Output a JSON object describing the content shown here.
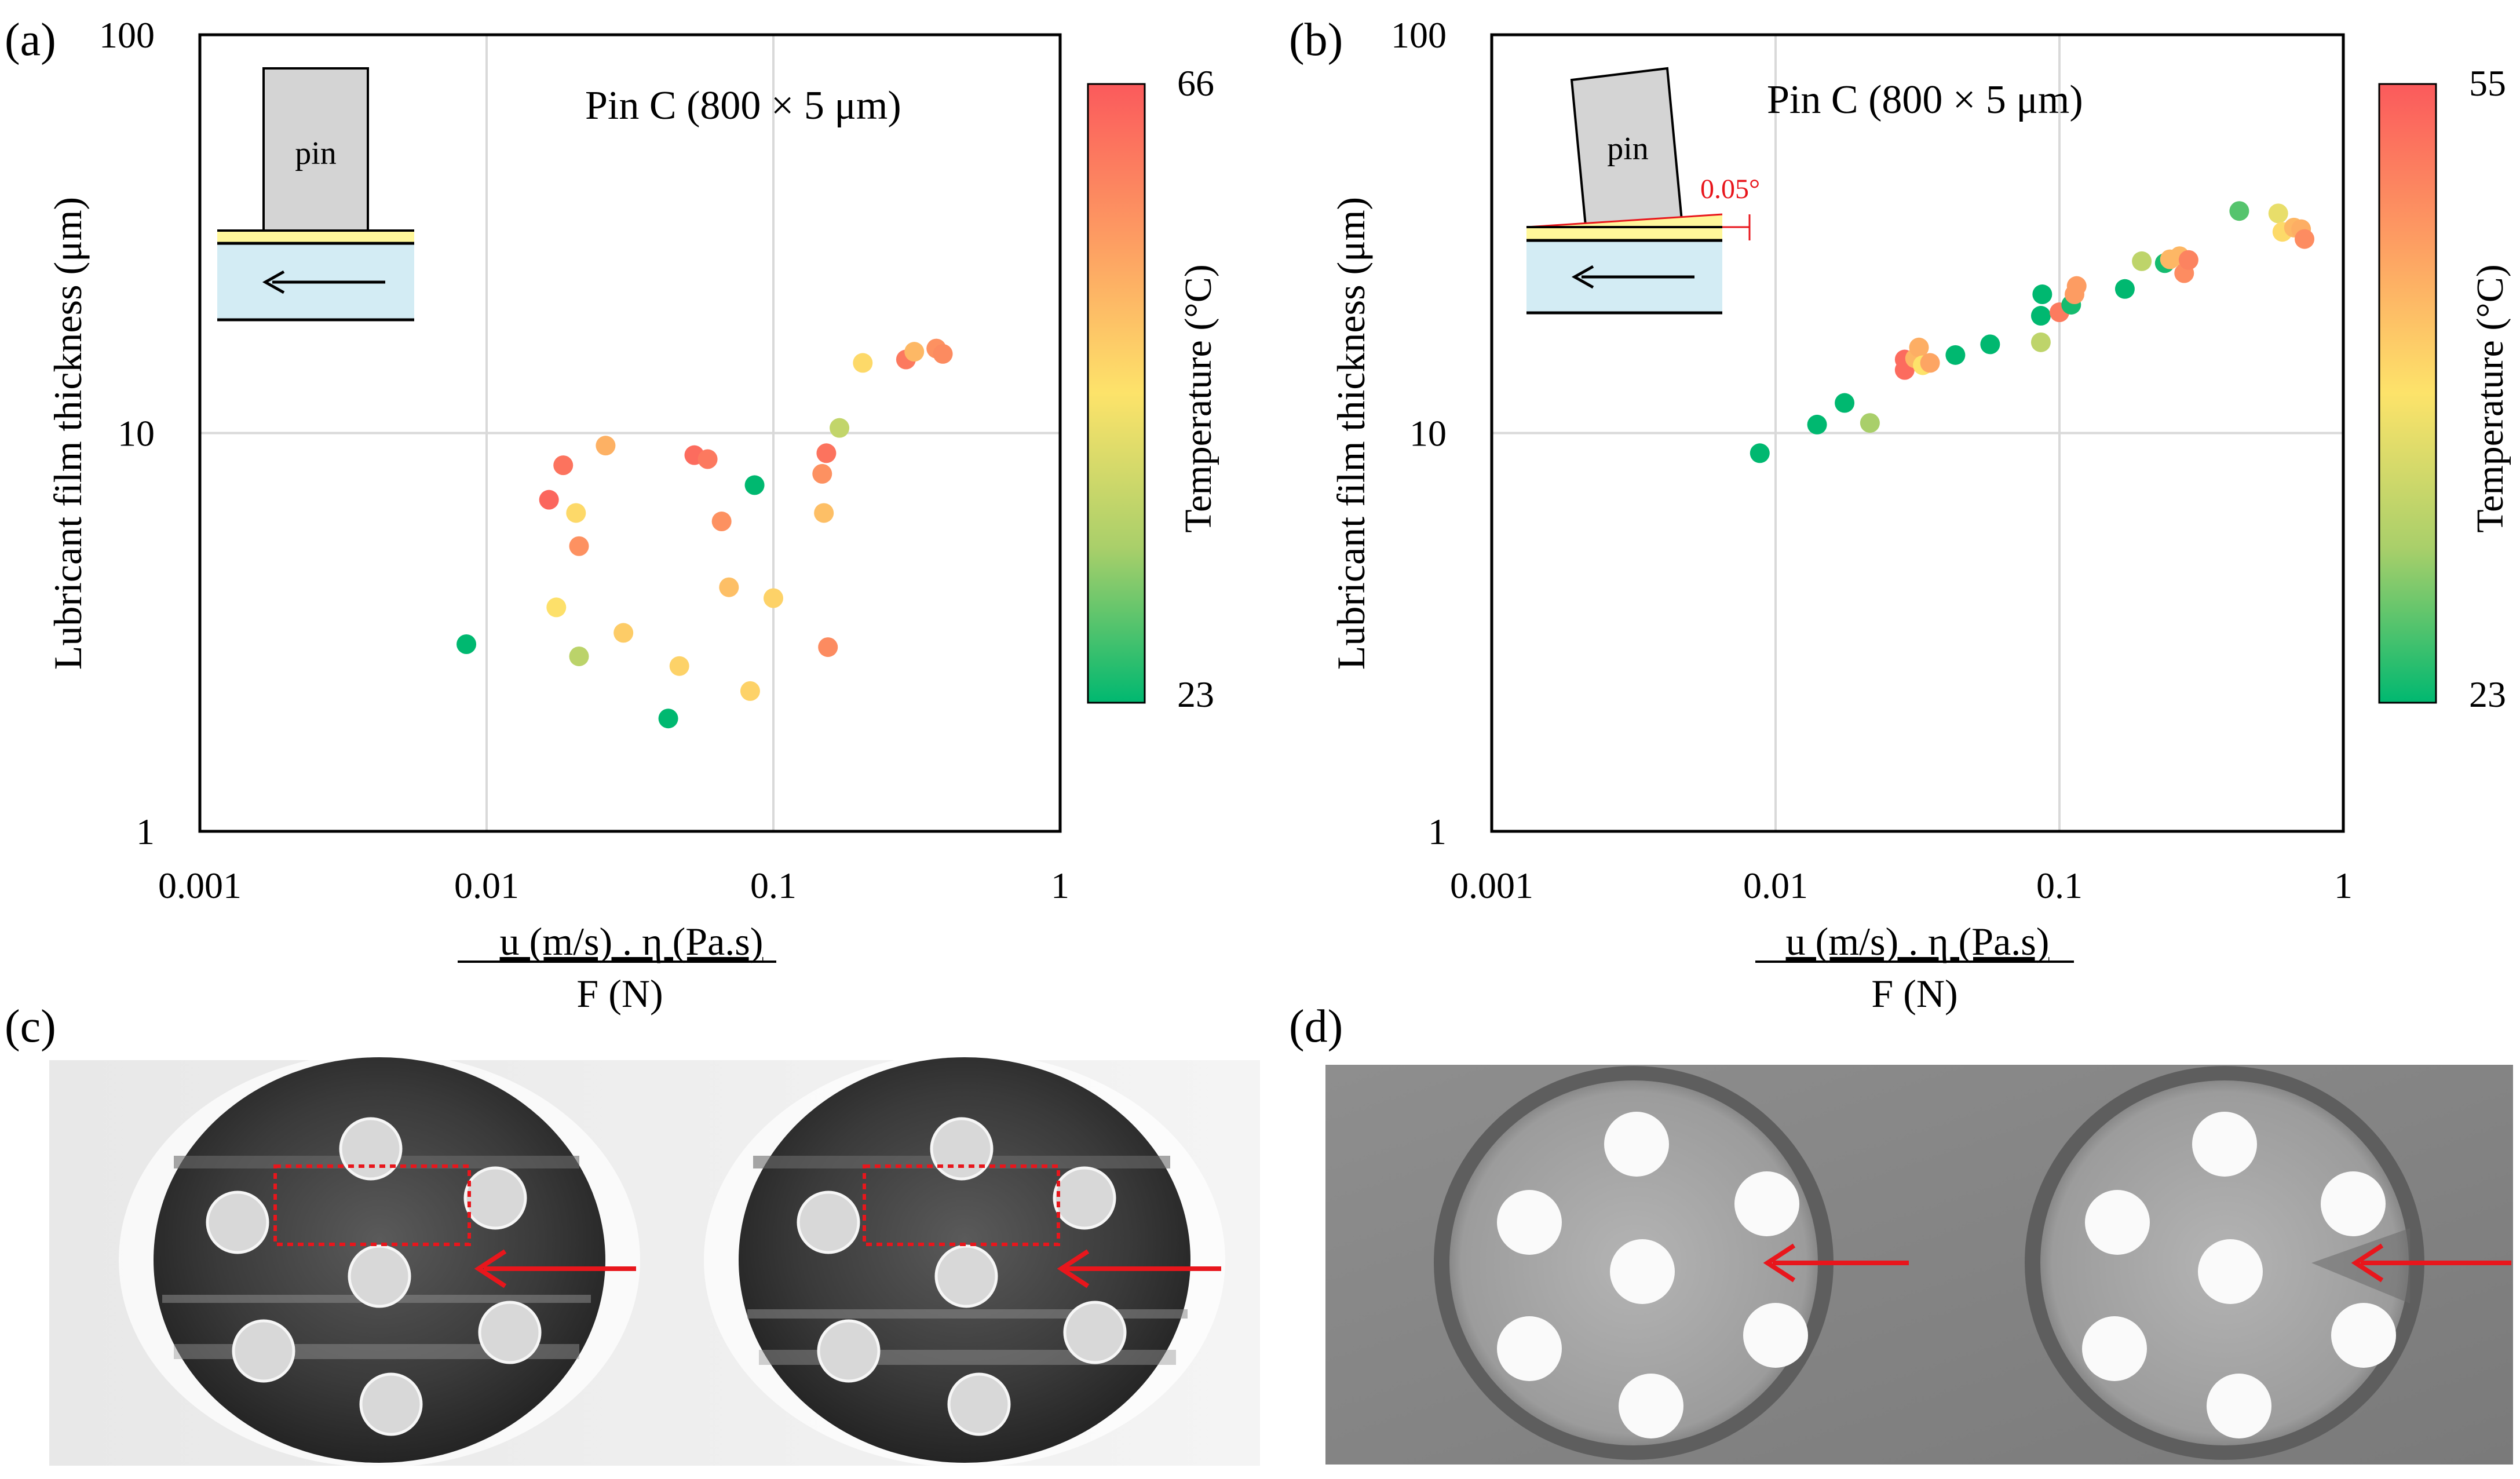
{
  "panels": {
    "a": {
      "label": "(a)"
    },
    "b": {
      "label": "(b)"
    },
    "c": {
      "label": "(c)"
    },
    "d": {
      "label": "(d)"
    }
  },
  "inset": {
    "pin_label": "pin",
    "tilt_label": "0.05°"
  },
  "colorbar": {
    "title": "Temperature (°C)",
    "a": {
      "min": 23,
      "max": 66
    },
    "b": {
      "min": 23,
      "max": 55
    },
    "colors": [
      "#00b870",
      "#a9cf6a",
      "#fde36a",
      "#fd9c62",
      "#fb5a5c"
    ]
  },
  "colors": {
    "annotation_red": "#e8161c"
  },
  "chart_data": [
    {
      "id": "a",
      "type": "scatter",
      "title": "Pin C (800 × 5 μm)",
      "xlabel_numerator": "u (m/s) . η (Pa.s)",
      "xlabel_denominator": "F (N)",
      "ylabel": "Lubricant film thickness (μm)",
      "xscale": "log",
      "yscale": "log",
      "xlim": [
        0.001,
        1
      ],
      "ylim": [
        1,
        100
      ],
      "xticks": [
        "0.001",
        "0.01",
        "0.1",
        "1"
      ],
      "yticks": [
        "1",
        "10",
        "100"
      ],
      "grid": true,
      "colorbar_range": [
        23,
        66
      ],
      "points": [
        {
          "x": 0.0085,
          "y": 2.95,
          "t": 23
        },
        {
          "x": 0.0165,
          "y": 6.8,
          "t": 64
        },
        {
          "x": 0.0175,
          "y": 3.65,
          "t": 45
        },
        {
          "x": 0.0185,
          "y": 8.3,
          "t": 62
        },
        {
          "x": 0.0205,
          "y": 6.3,
          "t": 46
        },
        {
          "x": 0.021,
          "y": 2.75,
          "t": 36
        },
        {
          "x": 0.021,
          "y": 5.2,
          "t": 57
        },
        {
          "x": 0.026,
          "y": 9.3,
          "t": 52
        },
        {
          "x": 0.03,
          "y": 3.15,
          "t": 48
        },
        {
          "x": 0.043,
          "y": 1.92,
          "t": 23
        },
        {
          "x": 0.047,
          "y": 2.6,
          "t": 47
        },
        {
          "x": 0.053,
          "y": 8.8,
          "t": 63
        },
        {
          "x": 0.059,
          "y": 8.6,
          "t": 61
        },
        {
          "x": 0.066,
          "y": 6.0,
          "t": 57
        },
        {
          "x": 0.07,
          "y": 4.1,
          "t": 50
        },
        {
          "x": 0.083,
          "y": 2.25,
          "t": 47
        },
        {
          "x": 0.086,
          "y": 7.4,
          "t": 23
        },
        {
          "x": 0.1,
          "y": 3.85,
          "t": 47
        },
        {
          "x": 0.148,
          "y": 7.9,
          "t": 57
        },
        {
          "x": 0.15,
          "y": 6.3,
          "t": 50
        },
        {
          "x": 0.153,
          "y": 8.9,
          "t": 62
        },
        {
          "x": 0.155,
          "y": 2.9,
          "t": 58
        },
        {
          "x": 0.17,
          "y": 10.3,
          "t": 37
        },
        {
          "x": 0.205,
          "y": 15.0,
          "t": 46
        },
        {
          "x": 0.29,
          "y": 15.3,
          "t": 61
        },
        {
          "x": 0.31,
          "y": 16.0,
          "t": 51
        },
        {
          "x": 0.37,
          "y": 16.3,
          "t": 57
        },
        {
          "x": 0.39,
          "y": 15.8,
          "t": 58
        }
      ]
    },
    {
      "id": "b",
      "type": "scatter",
      "title": "Pin C (800 × 5 μm)",
      "xlabel_numerator": "u (m/s) . η (Pa.s)",
      "xlabel_denominator": "F (N)",
      "ylabel": "Lubricant film thickness (μm)",
      "xscale": "log",
      "yscale": "log",
      "xlim": [
        0.001,
        1
      ],
      "ylim": [
        1,
        100
      ],
      "xticks": [
        "0.001",
        "0.01",
        "0.1",
        "1"
      ],
      "yticks": [
        "1",
        "10",
        "100"
      ],
      "grid": true,
      "colorbar_range": [
        23,
        55
      ],
      "points": [
        {
          "x": 0.0088,
          "y": 8.9,
          "t": 23
        },
        {
          "x": 0.014,
          "y": 10.5,
          "t": 23
        },
        {
          "x": 0.0175,
          "y": 11.9,
          "t": 23
        },
        {
          "x": 0.0215,
          "y": 10.6,
          "t": 31
        },
        {
          "x": 0.0285,
          "y": 14.4,
          "t": 53
        },
        {
          "x": 0.0285,
          "y": 15.3,
          "t": 53
        },
        {
          "x": 0.031,
          "y": 15.4,
          "t": 44
        },
        {
          "x": 0.032,
          "y": 16.4,
          "t": 45
        },
        {
          "x": 0.033,
          "y": 14.8,
          "t": 39
        },
        {
          "x": 0.035,
          "y": 15.0,
          "t": 46
        },
        {
          "x": 0.043,
          "y": 15.7,
          "t": 23
        },
        {
          "x": 0.057,
          "y": 16.7,
          "t": 23
        },
        {
          "x": 0.086,
          "y": 16.9,
          "t": 33
        },
        {
          "x": 0.086,
          "y": 19.7,
          "t": 23
        },
        {
          "x": 0.087,
          "y": 22.3,
          "t": 23
        },
        {
          "x": 0.1,
          "y": 20.1,
          "t": 51
        },
        {
          "x": 0.11,
          "y": 21.0,
          "t": 24
        },
        {
          "x": 0.113,
          "y": 22.3,
          "t": 47
        },
        {
          "x": 0.115,
          "y": 23.4,
          "t": 47
        },
        {
          "x": 0.17,
          "y": 23.0,
          "t": 23
        },
        {
          "x": 0.195,
          "y": 27.0,
          "t": 33
        },
        {
          "x": 0.235,
          "y": 26.7,
          "t": 24
        },
        {
          "x": 0.245,
          "y": 27.3,
          "t": 44
        },
        {
          "x": 0.265,
          "y": 27.8,
          "t": 44
        },
        {
          "x": 0.275,
          "y": 25.2,
          "t": 49
        },
        {
          "x": 0.285,
          "y": 27.2,
          "t": 50
        },
        {
          "x": 0.43,
          "y": 36.1,
          "t": 27
        },
        {
          "x": 0.59,
          "y": 35.6,
          "t": 37
        },
        {
          "x": 0.61,
          "y": 32.0,
          "t": 40
        },
        {
          "x": 0.67,
          "y": 32.8,
          "t": 44
        },
        {
          "x": 0.71,
          "y": 32.5,
          "t": 45
        },
        {
          "x": 0.73,
          "y": 30.7,
          "t": 49
        }
      ]
    }
  ]
}
